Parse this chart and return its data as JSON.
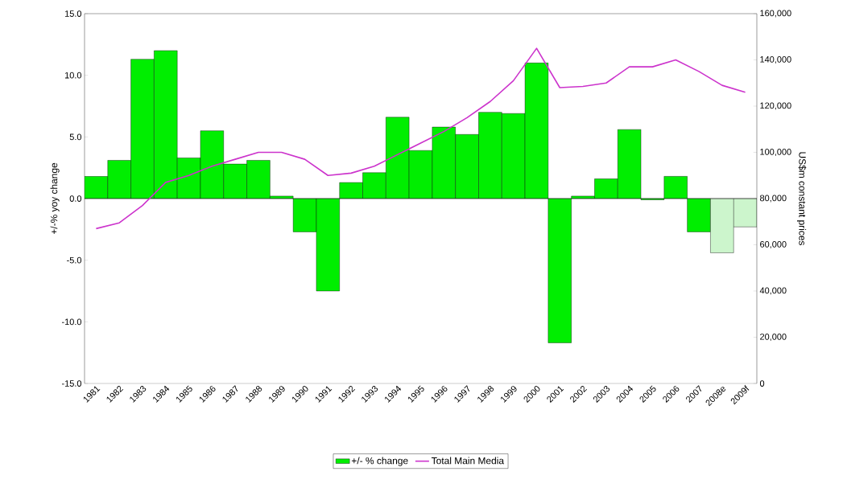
{
  "chart_data": {
    "type": "bar",
    "categories": [
      "1981",
      "1982",
      "1983",
      "1984",
      "1985",
      "1986",
      "1987",
      "1988",
      "1989",
      "1990",
      "1991",
      "1992",
      "1993",
      "1994",
      "1995",
      "1996",
      "1997",
      "1998",
      "1999",
      "2000",
      "2001",
      "2002",
      "2003",
      "2004",
      "2005",
      "2006",
      "2007",
      "2008e",
      "2009f"
    ],
    "series": [
      {
        "name": "+/- % change",
        "colors": [
          "#00ee00",
          "#00ee00",
          "#00ee00",
          "#00ee00",
          "#00ee00",
          "#00ee00",
          "#00ee00",
          "#00ee00",
          "#00ee00",
          "#00ee00",
          "#00ee00",
          "#00ee00",
          "#00ee00",
          "#00ee00",
          "#00ee00",
          "#00ee00",
          "#00ee00",
          "#00ee00",
          "#00ee00",
          "#00ee00",
          "#00ee00",
          "#00ee00",
          "#00ee00",
          "#00ee00",
          "#00ee00",
          "#00ee00",
          "#00ee00",
          "#ccf5cc",
          "#ccf5cc"
        ],
        "values": [
          1.8,
          3.1,
          11.3,
          12.0,
          3.3,
          5.5,
          2.8,
          3.1,
          0.2,
          -2.7,
          -7.5,
          1.3,
          2.1,
          6.6,
          3.9,
          5.8,
          5.2,
          7.0,
          6.9,
          11.0,
          -11.7,
          0.2,
          1.6,
          5.6,
          -0.1,
          1.8,
          -2.7,
          -4.4,
          -2.3
        ]
      },
      {
        "name": "Total Main Media",
        "type": "line",
        "axis": "y2",
        "color": "#cc33cc",
        "values": [
          67000,
          69500,
          77000,
          87000,
          90000,
          94000,
          97000,
          100000,
          100000,
          97000,
          90000,
          91000,
          94000,
          99000,
          104000,
          109000,
          115000,
          122000,
          131000,
          145000,
          128000,
          128500,
          130000,
          137000,
          137000,
          140000,
          135000,
          129000,
          126000
        ]
      }
    ],
    "ylabel": "+/-% yoy change",
    "y2label": "US$m constant prices",
    "ylim": [
      -15,
      15
    ],
    "yticks": [
      {
        "value": -15,
        "label": "-15.0"
      },
      {
        "value": -10,
        "label": "-10.0"
      },
      {
        "value": -5,
        "label": "-5.0"
      },
      {
        "value": 0,
        "label": "0.0"
      },
      {
        "value": 5,
        "label": "5.0"
      },
      {
        "value": 10,
        "label": "10.0"
      },
      {
        "value": 15,
        "label": "15.0"
      }
    ],
    "y2lim": [
      0,
      160000
    ],
    "y2ticks": [
      0,
      {
        "value": 20000,
        "label": "20,000"
      },
      {
        "value": 40000,
        "label": "40,000"
      },
      {
        "value": 60000,
        "label": "60,000"
      },
      {
        "value": 80000,
        "label": "80,000"
      },
      {
        "value": 100000,
        "label": "100,000"
      },
      {
        "value": 120000,
        "label": "120,000"
      },
      {
        "value": 140000,
        "label": "140,000"
      },
      {
        "value": 160000,
        "label": "160,000"
      }
    ],
    "legend": "bottom",
    "marker": "none",
    "line_style": "solid"
  }
}
